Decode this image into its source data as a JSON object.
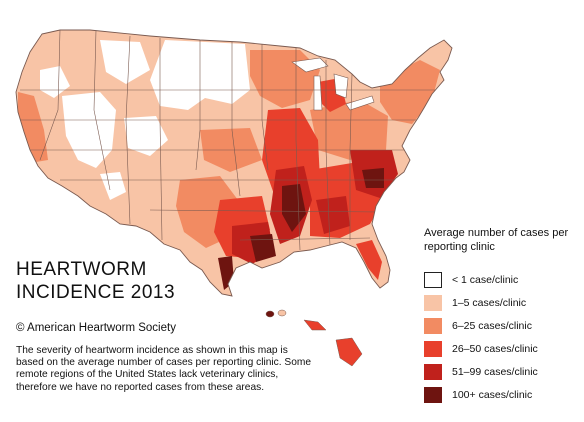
{
  "map": {
    "title_lines": [
      "HEARTWORM",
      "INCIDENCE 2013"
    ],
    "copyright": "© American Heartworm Society",
    "description": "The severity of heartworm incidence as shown in this map is based on the average number of cases per reporting clinic. Some remote regions of the United States lack veterinary clinics, therefore we have no reported cases from these areas."
  },
  "legend": {
    "title": "Average number of cases per reporting clinic",
    "items": [
      {
        "label": "< 1 case/clinic",
        "color": "#ffffff"
      },
      {
        "label": "1–5 cases/clinic",
        "color": "#f8c4a6"
      },
      {
        "label": "6–25 cases/clinic",
        "color": "#f28b62"
      },
      {
        "label": "26–50 cases/clinic",
        "color": "#e8402c"
      },
      {
        "label": "51–99 cases/clinic",
        "color": "#c0211c"
      },
      {
        "label": "100+ cases/clinic",
        "color": "#6e1410"
      }
    ]
  },
  "colors": {
    "border": "#7a5a50",
    "lake": "#ffffff",
    "accent": "#c0211c"
  }
}
